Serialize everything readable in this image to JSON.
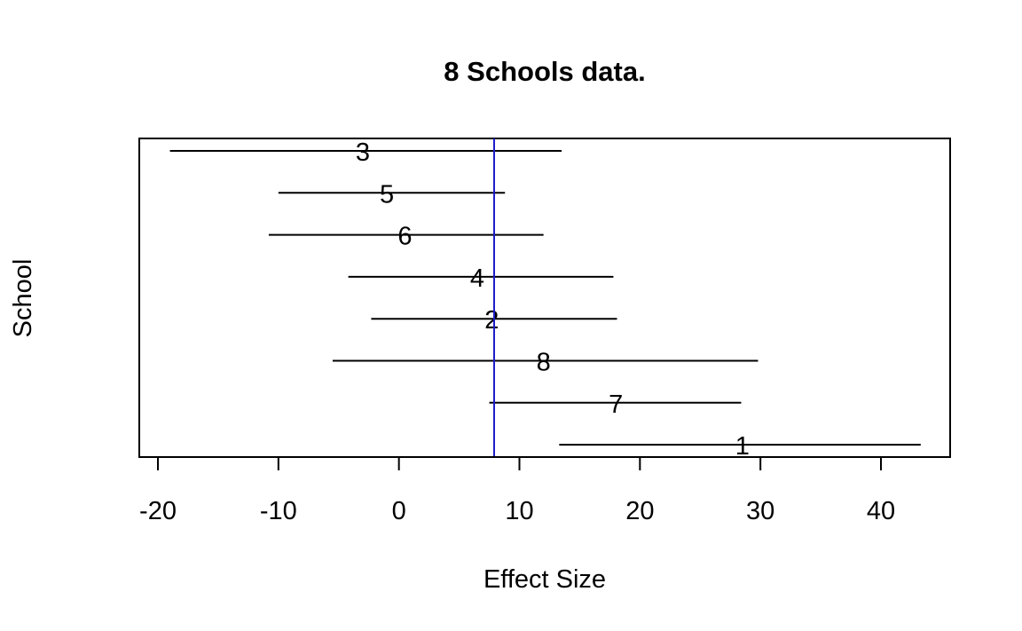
{
  "chart_data": {
    "type": "forest",
    "title": "8 Schools data.",
    "xlabel": "Effect Size",
    "ylabel": "School",
    "xlim": [
      -21.5,
      45.5
    ],
    "xticks": [
      -20,
      -10,
      0,
      10,
      20,
      30,
      40
    ],
    "reference_line": {
      "value": 7.9,
      "color": "#1a1acc"
    },
    "line_color": "#000000",
    "points": [
      {
        "label": "3",
        "estimate": -3,
        "lower": -19,
        "upper": 13.5
      },
      {
        "label": "5",
        "estimate": -1,
        "lower": -10,
        "upper": 8.8
      },
      {
        "label": "6",
        "estimate": 0.5,
        "lower": -10.8,
        "upper": 12
      },
      {
        "label": "4",
        "estimate": 6.5,
        "lower": -4.2,
        "upper": 17.8
      },
      {
        "label": "2",
        "estimate": 7.7,
        "lower": -2.3,
        "upper": 18.1
      },
      {
        "label": "8",
        "estimate": 12,
        "lower": -5.5,
        "upper": 29.8
      },
      {
        "label": "7",
        "estimate": 18,
        "lower": 7.5,
        "upper": 28.4
      },
      {
        "label": "1",
        "estimate": 28.5,
        "lower": 13.3,
        "upper": 43.3
      }
    ]
  }
}
